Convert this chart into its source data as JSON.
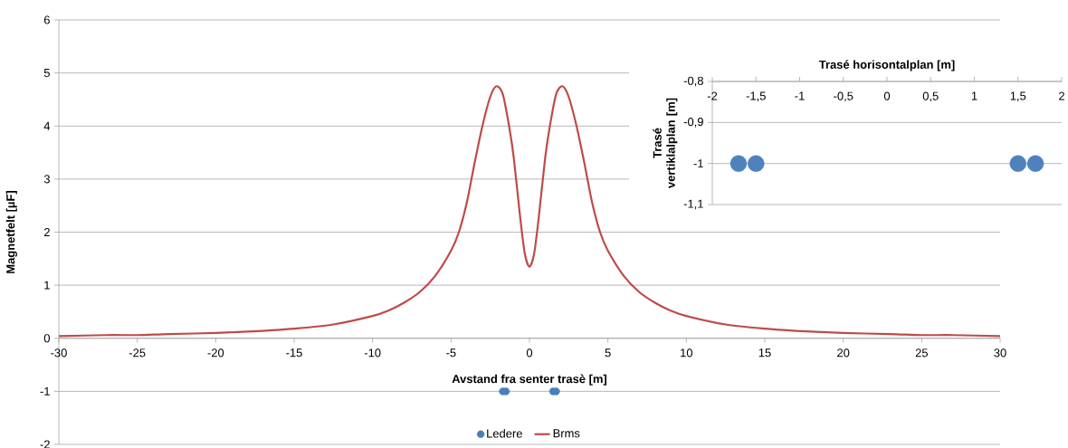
{
  "chart_data": [
    {
      "type": "line",
      "xlabel": "Avstand fra senter trasè [m]",
      "ylabel": "Magnetfelt [µF]",
      "xlim": [
        -30,
        30
      ],
      "ylim": [
        -2,
        6
      ],
      "xticks": [
        -30,
        -25,
        -20,
        -15,
        -10,
        -5,
        0,
        5,
        10,
        15,
        20,
        25,
        30
      ],
      "yticks": [
        -2,
        -1,
        0,
        1,
        2,
        3,
        4,
        5,
        6
      ],
      "grid": "y",
      "legend": "bottom",
      "series": [
        {
          "name": "Ledere",
          "type": "scatter",
          "marker": "circle",
          "color": "#4a7ebb",
          "x": [
            -1.7,
            -1.5,
            1.5,
            1.7
          ],
          "values": [
            -1,
            -1,
            -1,
            -1
          ]
        },
        {
          "name": "Brms",
          "type": "line",
          "marker": "none",
          "color": "#be4b48",
          "x": [
            -30,
            -27,
            -25,
            -23,
            -20,
            -17,
            -15,
            -12.5,
            -10,
            -9,
            -8,
            -7,
            -6,
            -5,
            -4.5,
            -4,
            -3.5,
            -3,
            -2.5,
            -2.1,
            -1.7,
            -1.3,
            -1,
            -0.6,
            -0.3,
            0,
            0.3,
            0.6,
            1,
            1.3,
            1.7,
            2.1,
            2.5,
            3,
            3.5,
            4,
            4.5,
            5,
            6,
            7,
            8,
            9,
            10,
            12.5,
            15,
            17,
            20,
            23,
            25,
            27,
            30
          ],
          "values": [
            0.04,
            0.06,
            0.06,
            0.08,
            0.1,
            0.14,
            0.18,
            0.26,
            0.42,
            0.52,
            0.67,
            0.87,
            1.18,
            1.65,
            2.0,
            2.55,
            3.3,
            4.0,
            4.55,
            4.75,
            4.6,
            4.0,
            3.4,
            2.3,
            1.6,
            1.35,
            1.6,
            2.3,
            3.4,
            4.0,
            4.6,
            4.75,
            4.55,
            4.0,
            3.3,
            2.55,
            2.0,
            1.65,
            1.18,
            0.87,
            0.67,
            0.52,
            0.42,
            0.26,
            0.18,
            0.14,
            0.1,
            0.08,
            0.06,
            0.06,
            0.04
          ]
        }
      ]
    },
    {
      "type": "scatter",
      "xlabel": "Trasé horisontalplan [m]",
      "ylabel": "Trasé vertiklalplan [m]",
      "xlim": [
        -2,
        2
      ],
      "ylim": [
        -1.1,
        -0.8
      ],
      "xticks": [
        -2,
        {
          "value": -1.5,
          "label": "-1,5"
        },
        -1,
        {
          "value": -0.5,
          "label": "-0,5"
        },
        0,
        {
          "value": 0.5,
          "label": "0,5"
        },
        1,
        {
          "value": 1.5,
          "label": "1,5"
        },
        2
      ],
      "yticks": [
        {
          "value": -1.1,
          "label": "-1,1"
        },
        -1,
        {
          "value": -0.9,
          "label": "-0,9"
        },
        {
          "value": -0.8,
          "label": "-0,8"
        }
      ],
      "grid": "y",
      "marker": "circle",
      "series": [
        {
          "color": "#4f81bd",
          "x": [
            -1.7,
            -1.5,
            1.5,
            1.7
          ],
          "values": [
            -1,
            -1,
            -1,
            -1
          ]
        }
      ]
    }
  ]
}
